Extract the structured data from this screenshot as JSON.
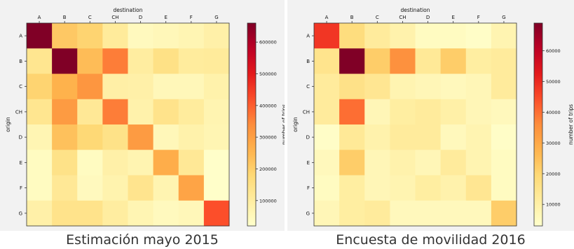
{
  "captions": {
    "left": "Estimación mayo 2015",
    "right": "Encuesta de movilidad 2016"
  },
  "colors": {
    "colormap": [
      "#ffffcc",
      "#ffeda0",
      "#fed976",
      "#feb24c",
      "#fd8d3c",
      "#fc4e2a",
      "#e31a1c",
      "#bd0026",
      "#800026"
    ],
    "panel_background": "#f2f2f2"
  },
  "chart_data": [
    {
      "type": "heatmap",
      "xlabel": "destination",
      "ylabel": "origin",
      "x_categories": [
        "A",
        "B",
        "C",
        "CH",
        "D",
        "E",
        "F",
        "G"
      ],
      "y_categories": [
        "A",
        "B",
        "C",
        "CH",
        "D",
        "E",
        "F",
        "G"
      ],
      "colorbar_label": "number of trips",
      "colorbar_ticks": [
        100000,
        200000,
        300000,
        400000,
        500000,
        600000
      ],
      "value_range": [
        20000,
        660000
      ],
      "values": [
        [
          660000,
          215000,
          190000,
          110000,
          45000,
          55000,
          65000,
          85000
        ],
        [
          130000,
          660000,
          240000,
          360000,
          100000,
          150000,
          105000,
          110000
        ],
        [
          190000,
          260000,
          320000,
          90000,
          85000,
          55000,
          55000,
          80000
        ],
        [
          130000,
          310000,
          120000,
          360000,
          80000,
          140000,
          105000,
          70000
        ],
        [
          65000,
          230000,
          180000,
          145000,
          310000,
          55000,
          80000,
          65000
        ],
        [
          40000,
          145000,
          40000,
          85000,
          70000,
          270000,
          120000,
          25000
        ],
        [
          40000,
          120000,
          45000,
          75000,
          135000,
          70000,
          290000,
          25000
        ],
        [
          85000,
          140000,
          140000,
          100000,
          65000,
          45000,
          55000,
          420000
        ]
      ]
    },
    {
      "type": "heatmap",
      "xlabel": "destination",
      "ylabel": "origin",
      "x_categories": [
        "A",
        "B",
        "C",
        "CH",
        "D",
        "E",
        "F",
        "G"
      ],
      "y_categories": [
        "A",
        "B",
        "C",
        "CH",
        "D",
        "E",
        "F",
        "G"
      ],
      "colorbar_label": "number of trips",
      "colorbar_ticks": [
        10000,
        20000,
        30000,
        40000,
        50000,
        60000
      ],
      "value_range": [
        3000,
        69000
      ],
      "values": [
        [
          48000,
          18000,
          12000,
          9000,
          5000,
          5000,
          4000,
          8000
        ],
        [
          15000,
          69000,
          22000,
          35000,
          13000,
          22000,
          11000,
          12000
        ],
        [
          12000,
          16000,
          14000,
          8000,
          7000,
          6000,
          7000,
          12000
        ],
        [
          12000,
          40000,
          7000,
          11000,
          12000,
          10000,
          7000,
          6000
        ],
        [
          4000,
          13000,
          9000,
          12000,
          12000,
          6000,
          8000,
          4000
        ],
        [
          6000,
          22000,
          7000,
          9000,
          7000,
          12000,
          8000,
          5000
        ],
        [
          5000,
          11000,
          7000,
          8000,
          11000,
          9000,
          14000,
          5000
        ],
        [
          7000,
          11000,
          12000,
          6000,
          6000,
          6000,
          6000,
          22000
        ]
      ]
    }
  ]
}
